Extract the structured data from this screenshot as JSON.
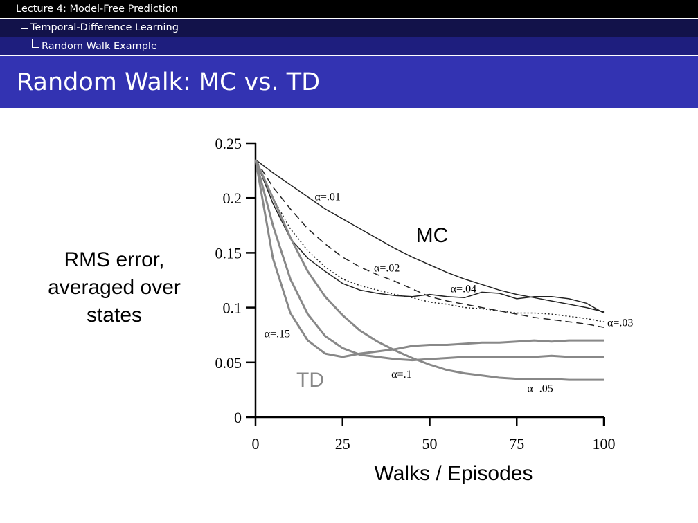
{
  "breadcrumb": {
    "lecture": "Lecture 4: Model-Free Prediction",
    "section": "Temporal-Difference Learning",
    "subsection": "Random Walk Example"
  },
  "slide": {
    "title": "Random Walk: MC vs. TD"
  },
  "colors": {
    "mc": "#222222",
    "td": "#888888",
    "title_bg": "#3333b2"
  },
  "chart_data": {
    "type": "line",
    "xlabel": "Walks / Episodes",
    "ylabel": "RMS error, averaged over states",
    "xlim": [
      0,
      100
    ],
    "ylim": [
      0,
      0.25
    ],
    "xticks": [
      "0",
      "25",
      "50",
      "75",
      "100"
    ],
    "yticks": [
      "0",
      "0.05",
      "0.1",
      "0.15",
      "0.2",
      "0.25"
    ],
    "grid": false,
    "group_labels": {
      "mc": "MC",
      "td": "TD"
    },
    "x": [
      0,
      5,
      10,
      15,
      20,
      25,
      30,
      35,
      40,
      45,
      50,
      55,
      60,
      65,
      70,
      75,
      80,
      85,
      90,
      95,
      100
    ],
    "series": [
      {
        "name": "α=.01",
        "group": "mc",
        "dash": "solid",
        "values": [
          0.235,
          0.223,
          0.212,
          0.201,
          0.19,
          0.181,
          0.172,
          0.163,
          0.154,
          0.146,
          0.139,
          0.132,
          0.126,
          0.121,
          0.116,
          0.112,
          0.109,
          0.106,
          0.103,
          0.1,
          0.096
        ]
      },
      {
        "name": "α=.02",
        "group": "mc",
        "dash": "dashed",
        "values": [
          0.235,
          0.21,
          0.19,
          0.172,
          0.158,
          0.146,
          0.137,
          0.13,
          0.124,
          0.117,
          0.11,
          0.106,
          0.103,
          0.1,
          0.097,
          0.094,
          0.091,
          0.089,
          0.087,
          0.085,
          0.082
        ]
      },
      {
        "name": "α=.03",
        "group": "mc",
        "dash": "dotted",
        "values": [
          0.235,
          0.2,
          0.172,
          0.152,
          0.137,
          0.126,
          0.12,
          0.116,
          0.112,
          0.109,
          0.105,
          0.103,
          0.1,
          0.099,
          0.097,
          0.095,
          0.095,
          0.094,
          0.092,
          0.09,
          0.087
        ]
      },
      {
        "name": "α=.04",
        "group": "mc",
        "dash": "solid",
        "values": [
          0.235,
          0.195,
          0.163,
          0.145,
          0.133,
          0.122,
          0.116,
          0.113,
          0.111,
          0.11,
          0.112,
          0.11,
          0.109,
          0.114,
          0.113,
          0.108,
          0.11,
          0.11,
          0.108,
          0.104,
          0.095
        ]
      },
      {
        "name": "α=.05",
        "group": "td",
        "dash": "solid",
        "values": [
          0.235,
          0.2,
          0.164,
          0.133,
          0.11,
          0.093,
          0.079,
          0.069,
          0.061,
          0.054,
          0.048,
          0.043,
          0.04,
          0.038,
          0.036,
          0.035,
          0.035,
          0.035,
          0.034,
          0.034,
          0.034
        ]
      },
      {
        "name": "α=.1",
        "group": "td",
        "dash": "solid",
        "values": [
          0.235,
          0.175,
          0.126,
          0.094,
          0.074,
          0.063,
          0.057,
          0.055,
          0.053,
          0.052,
          0.053,
          0.054,
          0.055,
          0.055,
          0.055,
          0.055,
          0.055,
          0.056,
          0.055,
          0.055,
          0.055
        ]
      },
      {
        "name": "α=.15",
        "group": "td",
        "dash": "solid",
        "values": [
          0.235,
          0.145,
          0.095,
          0.07,
          0.058,
          0.055,
          0.058,
          0.06,
          0.062,
          0.065,
          0.066,
          0.066,
          0.067,
          0.068,
          0.068,
          0.069,
          0.07,
          0.069,
          0.07,
          0.07,
          0.07
        ]
      }
    ],
    "annotations": [
      {
        "text": "α=.01",
        "x": 17,
        "y": 0.198
      },
      {
        "text": "α=.02",
        "x": 34,
        "y": 0.133
      },
      {
        "text": "α=.04",
        "x": 56,
        "y": 0.114
      },
      {
        "text": "α=.03",
        "x": 101,
        "y": 0.083
      },
      {
        "text": "α=.15",
        "x": 2.5,
        "y": 0.073
      },
      {
        "text": "α=.1",
        "x": 39,
        "y": 0.036
      },
      {
        "text": "α=.05",
        "x": 78,
        "y": 0.023
      }
    ]
  }
}
